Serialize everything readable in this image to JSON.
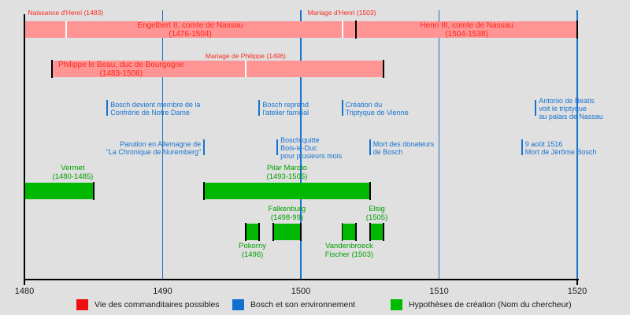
{
  "palette": {
    "background": "#e0e0e0",
    "pink_bar": "#ff9494",
    "red_text": "#fa2a1e",
    "blue": "#1873cf",
    "green_bar": "#00b800",
    "green_text": "#00a000",
    "axis_black": "#000000",
    "legend_red": "#ee1111",
    "legend_blue": "#1170d0",
    "legend_green": "#00bb00"
  },
  "chart_data": {
    "type": "timeline",
    "x_axis": {
      "min": 1480,
      "max": 1520,
      "ticks": [
        1480,
        1490,
        1500,
        1510,
        1520
      ],
      "gridlines": [
        1490,
        1500,
        1510,
        1520
      ]
    },
    "red_bars": [
      {
        "label": "Engelbert II, comte de Nassau",
        "dates": "(1476-1504)",
        "bar_start": 1480,
        "bar_end": 1504,
        "row": 1,
        "marker_start": false,
        "marker_end": true,
        "event_ticks": [
          1483,
          1503
        ]
      },
      {
        "label": "Henri III, comte de Nassau",
        "dates": "(1504-1538)",
        "bar_start": 1504,
        "bar_end": 1520,
        "row": 1,
        "marker_start": true,
        "marker_end": true,
        "event_ticks": []
      },
      {
        "label": "Philippe le Beau, duc de Bourgogne",
        "dates": "(1483-1506)",
        "bar_start": 1482,
        "bar_end": 1506,
        "row": 2,
        "marker_start": true,
        "marker_end": true,
        "event_ticks": [
          1496
        ],
        "label_center_year": 1487
      }
    ],
    "red_annotations": [
      {
        "text": "Naissance d'Henri (1483)",
        "x_year": 1480.25,
        "row": "top"
      },
      {
        "text": "Mariage d'Henri (1503)",
        "x_year": 1500.5,
        "row": "top"
      },
      {
        "text": "Mariage de Philippe (1496)",
        "x_year": 1493.1,
        "row": "mid"
      }
    ],
    "blue_annotations": [
      {
        "lines": [
          "Bosch devient membre de la",
          "Confrérie de Notre Dame"
        ],
        "year": 1486,
        "row": 1,
        "align": "left"
      },
      {
        "lines": [
          "Bosch reprend",
          "l'atelier familial"
        ],
        "year": 1497,
        "row": 1,
        "align": "left"
      },
      {
        "lines": [
          "Création du",
          "Triptyque de Vienne"
        ],
        "year": 1503,
        "row": 1,
        "align": "left"
      },
      {
        "lines": [
          "Antonio de Beatis",
          "voit le triptyque",
          "au palais de Nassau"
        ],
        "year": 1517,
        "row": 1,
        "align": "left"
      },
      {
        "lines": [
          "Parution en Allemagne de",
          "\"La Chronique de Nuremberg\""
        ],
        "year": 1493,
        "row": 2,
        "align": "right"
      },
      {
        "lines": [
          "Bosch quitte",
          "Bois-le-Duc",
          "pour plusieurs mois"
        ],
        "year": 1498.3,
        "row": 2,
        "align": "left"
      },
      {
        "lines": [
          "Mort des donateurs",
          "de Bosch"
        ],
        "year": 1505,
        "row": 2,
        "align": "left"
      },
      {
        "lines": [
          "9 août 1516",
          "Mort de Jérôme Bosch"
        ],
        "year": 1516,
        "row": 2,
        "align": "left"
      }
    ],
    "green_bars": [
      {
        "label_lines": [
          "Vermet",
          "(1480-1485)"
        ],
        "start": 1480,
        "end": 1485,
        "row": 1,
        "label_pos": "above",
        "label_center_year": 1483.5
      },
      {
        "label_lines": [
          "Pilar Maroto",
          "(1493-1505)"
        ],
        "start": 1493,
        "end": 1505,
        "row": 1,
        "label_pos": "above"
      },
      {
        "label_lines": [
          "Falkenburg",
          "(1498-99)"
        ],
        "start": 1498,
        "end": 1500,
        "row": 2,
        "label_pos": "above"
      },
      {
        "label_lines": [
          "Elsig",
          "(1505)"
        ],
        "start": 1505,
        "end": 1506,
        "row": 2,
        "label_pos": "above"
      },
      {
        "label_lines": [
          "Pokorny",
          "(1496)"
        ],
        "start": 1496,
        "end": 1497,
        "row": 2,
        "label_pos": "below"
      },
      {
        "label_lines": [
          "Vandenbroeck",
          "Fischer (1503)"
        ],
        "start": 1503,
        "end": 1504,
        "row": 2,
        "label_pos": "below"
      }
    ],
    "legend": [
      {
        "color": "#ee1111",
        "label": "Vie des commanditaires possibles"
      },
      {
        "color": "#1170d0",
        "label": "Bosch et son environnement"
      },
      {
        "color": "#00bb00",
        "label": "Hypothèses de création (Nom du chercheur)"
      }
    ]
  }
}
